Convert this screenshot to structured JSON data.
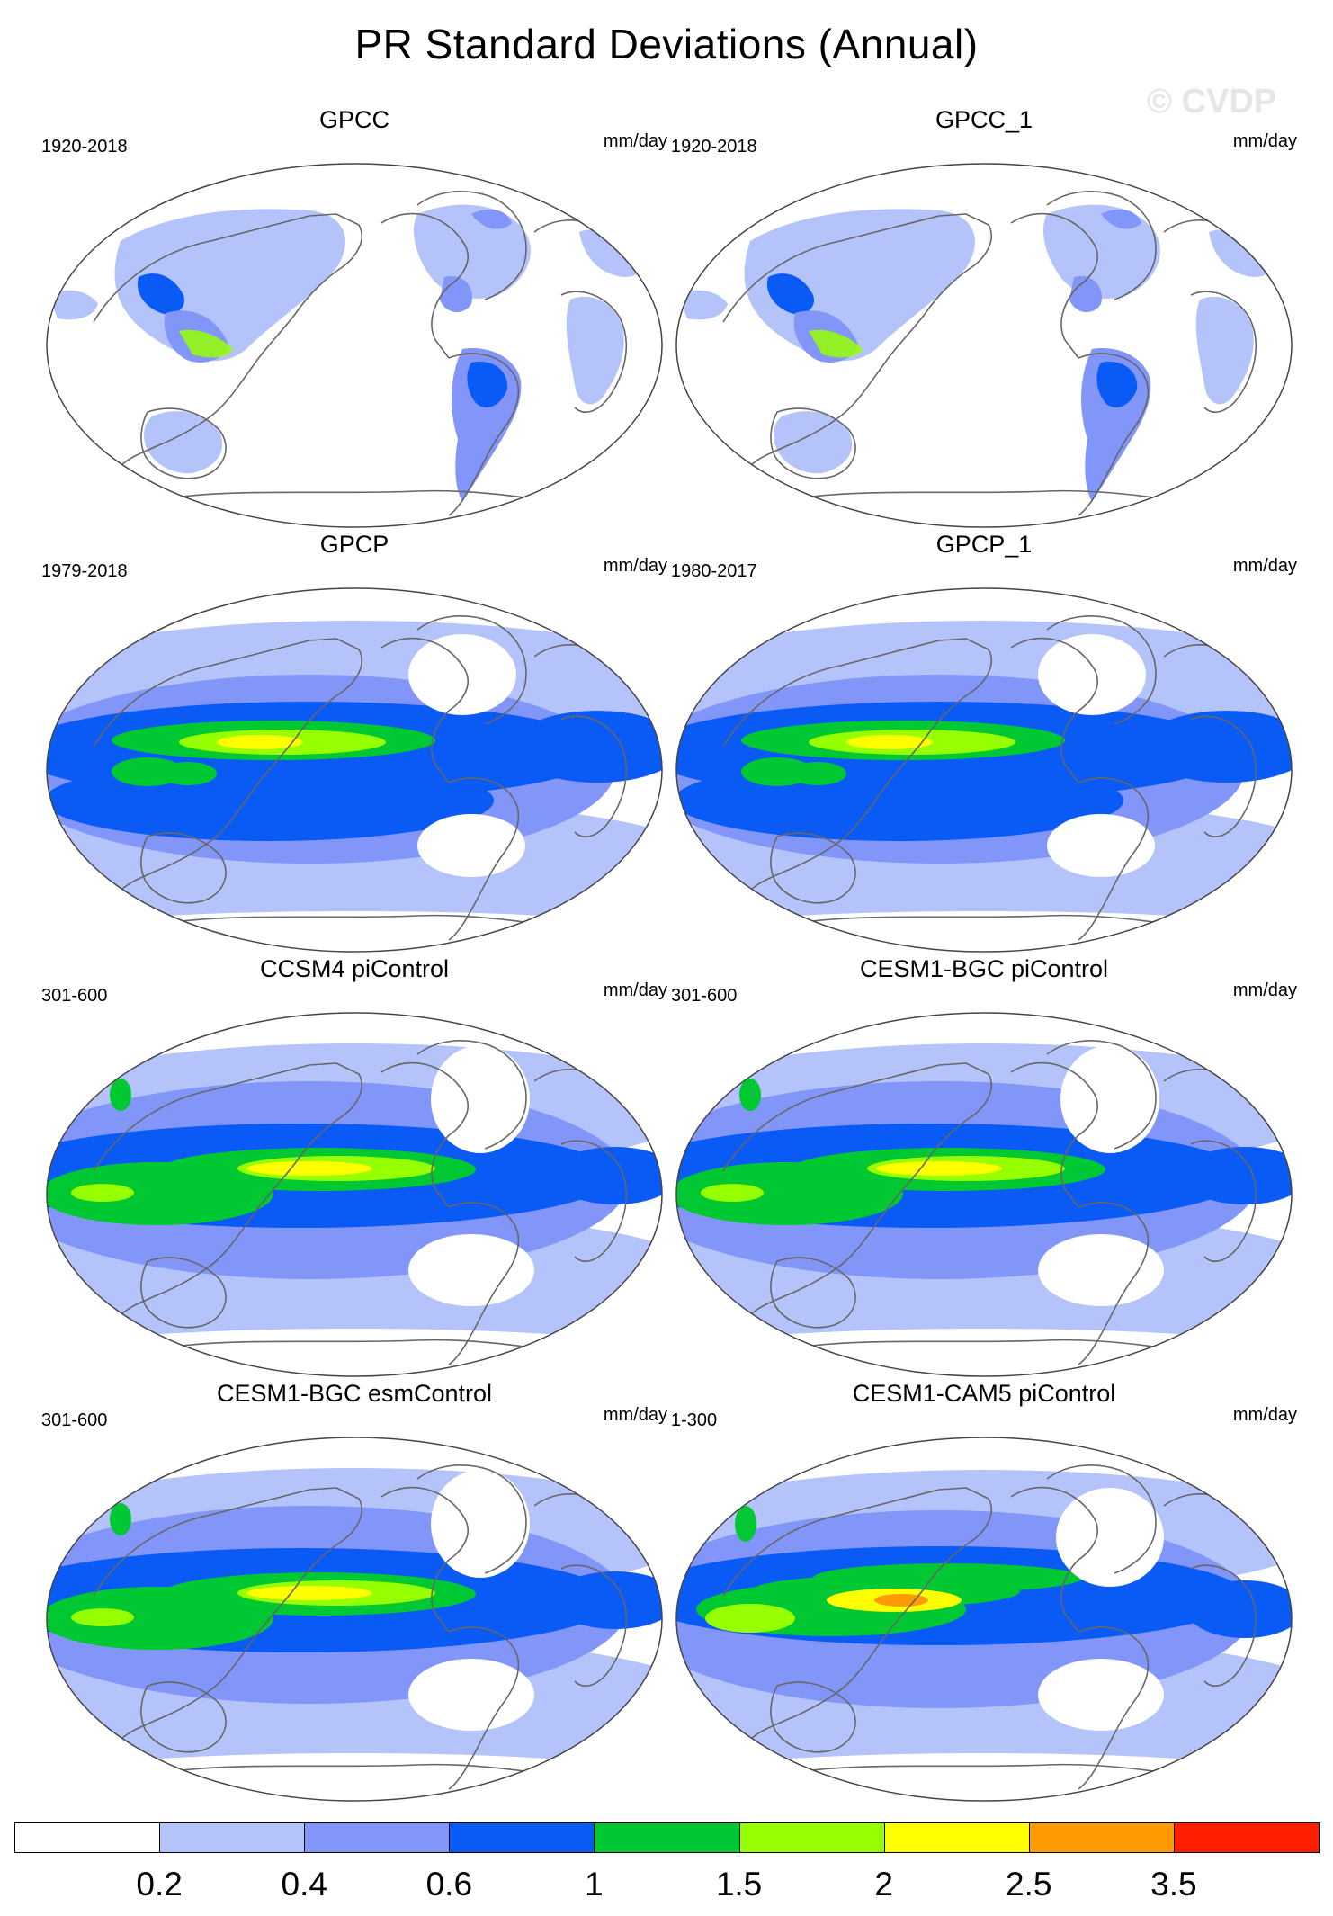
{
  "title": "PR Standard Deviations (Annual)",
  "watermark": "© CVDP",
  "units_label": "mm/day",
  "panels": [
    {
      "title": "GPCC",
      "period": "1920-2018",
      "style": "land"
    },
    {
      "title": "GPCC_1",
      "period": "1920-2018",
      "style": "land"
    },
    {
      "title": "GPCP",
      "period": "1979-2018",
      "style": "obs"
    },
    {
      "title": "GPCP_1",
      "period": "1980-2017",
      "style": "obs"
    },
    {
      "title": "CCSM4 piControl",
      "period": "301-600",
      "style": "model"
    },
    {
      "title": "CESM1-BGC piControl",
      "period": "301-600",
      "style": "model"
    },
    {
      "title": "CESM1-BGC esmControl",
      "period": "301-600",
      "style": "model"
    },
    {
      "title": "CESM1-CAM5 piControl",
      "period": "1-300",
      "style": "cam5"
    }
  ],
  "colorbar": {
    "labels": [
      "0.2",
      "0.4",
      "0.6",
      "1",
      "1.5",
      "2",
      "2.5",
      "3.5"
    ],
    "colors": [
      "#ffffff",
      "#b4c3fa",
      "#8296fa",
      "#0a5af5",
      "#00c832",
      "#96ff00",
      "#ffff00",
      "#ff9b00",
      "#ff1e00"
    ]
  }
}
